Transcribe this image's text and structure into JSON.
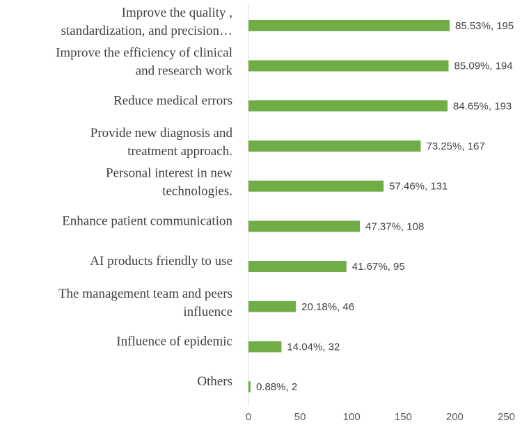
{
  "chart_data": {
    "type": "bar",
    "orientation": "horizontal",
    "title": "",
    "xlabel": "",
    "ylabel": "",
    "xlim": [
      0,
      250
    ],
    "xticks": [
      0,
      50,
      100,
      150,
      200,
      250
    ],
    "grid": false,
    "bar_color": "#70AD47",
    "categories": [
      [
        "Improve the quality ,",
        "standardization, and precision…"
      ],
      [
        "Improve the efficiency of clinical",
        "and research work"
      ],
      [
        "Reduce medical  errors"
      ],
      [
        "Provide new diagnosis and",
        "treatment approach."
      ],
      [
        "Personal interest in new",
        "technologies."
      ],
      [
        "Enhance patient communication"
      ],
      [
        "AI products friendly to use"
      ],
      [
        "The management team and peers",
        "influence"
      ],
      [
        "Influence of epidemic"
      ],
      [
        "Others"
      ]
    ],
    "values": [
      195,
      194,
      193,
      167,
      131,
      108,
      95,
      46,
      32,
      2
    ],
    "percent_labels": [
      "85.53%",
      "85.09%",
      "84.65%",
      "73.25%",
      "57.46%",
      "47.37%",
      "41.67%",
      "20.18%",
      "14.04%",
      "0.88%"
    ]
  }
}
